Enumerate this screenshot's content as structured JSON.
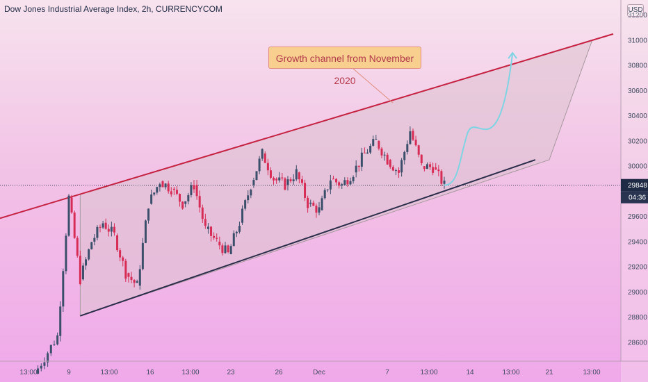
{
  "header": {
    "title": "Dow Jones Industrial Average Index, 2h, CURRENCYCOM",
    "currency": "USD"
  },
  "annotation": {
    "label": "Growth channel from November 2020"
  },
  "price_tags": {
    "last_price": "29848",
    "countdown": "04:36"
  },
  "colors": {
    "up_candle": "#3b4f6b",
    "down_candle": "#d62c56",
    "channel_line": "#c52242",
    "channel_fill": "#dcc3cf",
    "projection": "#7fd4e3",
    "price_tag_bg": "#1f2a44",
    "countdown_bg": "#283450"
  },
  "chart_data": {
    "type": "candlestick",
    "title": "Dow Jones Industrial Average Index, 2h, CURRENCYCOM",
    "ylim": [
      28450,
      31320
    ],
    "y_ticks": [
      28600,
      28800,
      29000,
      29200,
      29400,
      29600,
      29800,
      30000,
      30200,
      30400,
      30600,
      30800,
      31000,
      31200
    ],
    "x_tick_labels": [
      "13:00",
      "9",
      "13:00",
      "16",
      "13:00",
      "23",
      "26",
      "Dec",
      "7",
      "13:00",
      "14",
      "13:00",
      "21",
      "13:00"
    ],
    "last_price": 29848,
    "grid": false,
    "series": [
      {
        "name": "close",
        "points": [
          {
            "t": "Nov 6",
            "close": 28350
          },
          {
            "t": "Nov 8",
            "close": 28650
          },
          {
            "t": "Nov 9",
            "close": 29750
          },
          {
            "t": "Nov 10",
            "close": 29100
          },
          {
            "t": "Nov 11",
            "close": 29400
          },
          {
            "t": "Nov 12",
            "close": 29550
          },
          {
            "t": "Nov 13",
            "close": 29450
          },
          {
            "t": "Nov 14",
            "close": 29150
          },
          {
            "t": "Nov 15",
            "close": 29050
          },
          {
            "t": "Nov 16",
            "close": 29700
          },
          {
            "t": "Nov 17",
            "close": 29880
          },
          {
            "t": "Nov 18",
            "close": 29820
          },
          {
            "t": "Nov 19",
            "close": 29700
          },
          {
            "t": "Nov 20",
            "close": 29850
          },
          {
            "t": "Nov 21",
            "close": 29500
          },
          {
            "t": "Nov 22",
            "close": 29400
          },
          {
            "t": "Nov 23",
            "close": 29300
          },
          {
            "t": "Nov 24",
            "close": 29550
          },
          {
            "t": "Nov 25",
            "close": 29850
          },
          {
            "t": "Nov 26",
            "close": 30100
          },
          {
            "t": "Nov 27",
            "close": 29900
          },
          {
            "t": "Nov 28",
            "close": 29850
          },
          {
            "t": "Nov 29",
            "close": 29950
          },
          {
            "t": "Nov 30",
            "close": 29700
          },
          {
            "t": "Dec 1",
            "close": 29650
          },
          {
            "t": "Dec 2",
            "close": 29900
          },
          {
            "t": "Dec 3",
            "close": 29850
          },
          {
            "t": "Dec 4",
            "close": 29950
          },
          {
            "t": "Dec 5",
            "close": 30100
          },
          {
            "t": "Dec 6",
            "close": 30200
          },
          {
            "t": "Dec 7",
            "close": 30050
          },
          {
            "t": "Dec 8",
            "close": 29950
          },
          {
            "t": "Dec 9",
            "close": 30280
          },
          {
            "t": "Dec 10",
            "close": 30000
          },
          {
            "t": "Dec 11",
            "close": 29990
          },
          {
            "t": "Dec 12",
            "close": 29848
          }
        ]
      }
    ],
    "channel": {
      "upper": [
        {
          "t": "Nov 9",
          "price": 29750
        },
        {
          "t": "Dec 25",
          "price": 31000
        }
      ],
      "lower": [
        {
          "t": "Nov 10",
          "price": 28810
        },
        {
          "t": "Dec 20",
          "price": 30050
        }
      ]
    },
    "projection": [
      {
        "t": "Dec 12",
        "price": 29848
      },
      {
        "t": "Dec 14",
        "price": 30250
      },
      {
        "t": "Dec 16",
        "price": 30150
      },
      {
        "t": "Dec 18",
        "price": 30900
      }
    ]
  }
}
